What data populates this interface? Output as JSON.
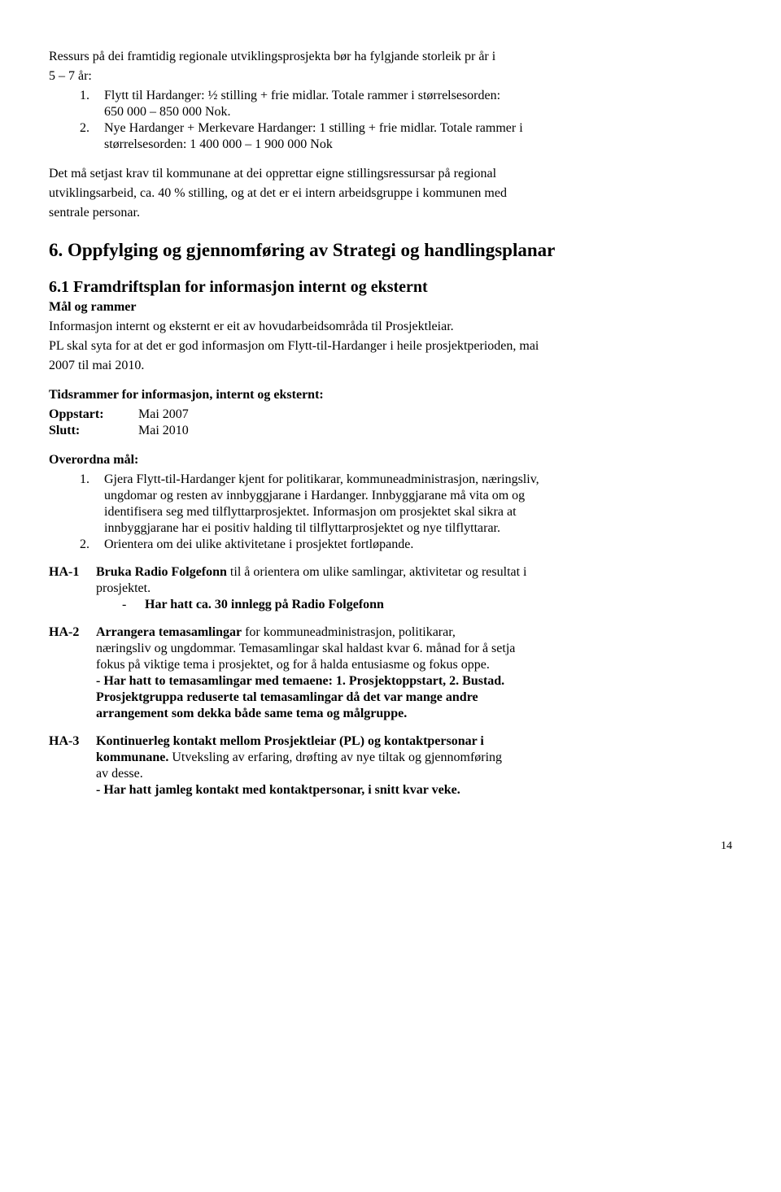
{
  "intro": {
    "line1": "Ressurs på dei framtidig regionale utviklingsprosjekta bør ha fylgjande storleik pr år i",
    "line2": "5 – 7 år:"
  },
  "numlist": {
    "i1": {
      "num": "1.",
      "l1": "Flytt til Hardanger: ½ stilling + frie midlar. Totale rammer i størrelsesorden:",
      "l2": "650 000 – 850 000 Nok."
    },
    "i2": {
      "num": "2.",
      "l1": "Nye Hardanger + Merkevare Hardanger: 1 stilling + frie midlar. Totale rammer i",
      "l2": "størrelsesorden: 1 400 000 – 1 900 000 Nok"
    }
  },
  "para2": {
    "l1": "Det må setjast krav til kommunane at dei opprettar eigne stillingsressursar på regional",
    "l2": "utviklingsarbeid, ca. 40 % stilling, og at det er ei intern arbeidsgruppe i kommunen med",
    "l3": "sentrale personar."
  },
  "h1": "6. Oppfylging og gjennomføring av Strategi og handlingsplanar",
  "h2": "6.1 Framdriftsplan for informasjon internt og eksternt",
  "mr": {
    "title": "Mål og rammer",
    "l1": "Informasjon internt og eksternt er eit av hovudarbeidsområda til Prosjektleiar.",
    "l2": "PL skal syta for at det er god informasjon om Flytt-til-Hardanger i heile prosjektperioden, mai",
    "l3": "2007 til mai 2010."
  },
  "tids": {
    "title": "Tidsrammer for informasjon, internt og eksternt:",
    "k1": "Oppstart:",
    "v1": "Mai 2007",
    "k2": "Slutt:",
    "v2": "Mai 2010"
  },
  "overord": {
    "title": "Overordna mål:",
    "i1": {
      "num": "1.",
      "l1": "Gjera Flytt-til-Hardanger kjent for politikarar, kommuneadministrasjon, næringsliv,",
      "l2": "ungdomar og resten av innbyggjarane i Hardanger. Innbyggjarane må vita om og",
      "l3": "identifisera seg med tilflyttarprosjektet. Informasjon om prosjektet skal sikra at",
      "l4": "innbyggjarane har ei positiv halding til tilflyttarprosjektet og nye tilflyttarar."
    },
    "i2": {
      "num": "2.",
      "l1": "Orientera om dei ulike aktivitetane i prosjektet fortløpande."
    }
  },
  "ha1": {
    "label": "HA-1",
    "title_1": "Bruka Radio Folgefonn",
    "title_2": " til å orientera om ulike samlingar, aktivitetar og resultat i",
    "l2": "prosjektet.",
    "dash": "-",
    "result": "Har hatt ca. 30 innlegg på Radio Folgefonn"
  },
  "ha2": {
    "label": "HA-2",
    "title_1": "Arrangera temasamlingar",
    "title_2": " for kommuneadministrasjon, politikarar,",
    "l2": "næringsliv og ungdommar. Temasamlingar skal haldast kvar 6. månad for å setja",
    "l3": "fokus på viktige tema i prosjektet, og for å halda entusiasme og fokus oppe.",
    "r1": "- Har hatt to temasamlingar med temaene: 1. Prosjektoppstart, 2. Bustad.",
    "r2": "Prosjektgruppa reduserte tal temasamlingar då det var mange andre",
    "r3": "arrangement som dekka både same tema og målgruppe."
  },
  "ha3": {
    "label": "HA-3",
    "l1_1": "Kontinuerleg kontakt mellom Prosjektleiar (PL) og kontaktpersonar i",
    "l1_2": "kommunane.",
    "l2": " Utveksling av erfaring, drøfting av nye tiltak og gjennomføring",
    "l3": "av desse.",
    "r1": "- Har hatt jamleg kontakt med kontaktpersonar, i snitt kvar veke."
  },
  "page": "14"
}
